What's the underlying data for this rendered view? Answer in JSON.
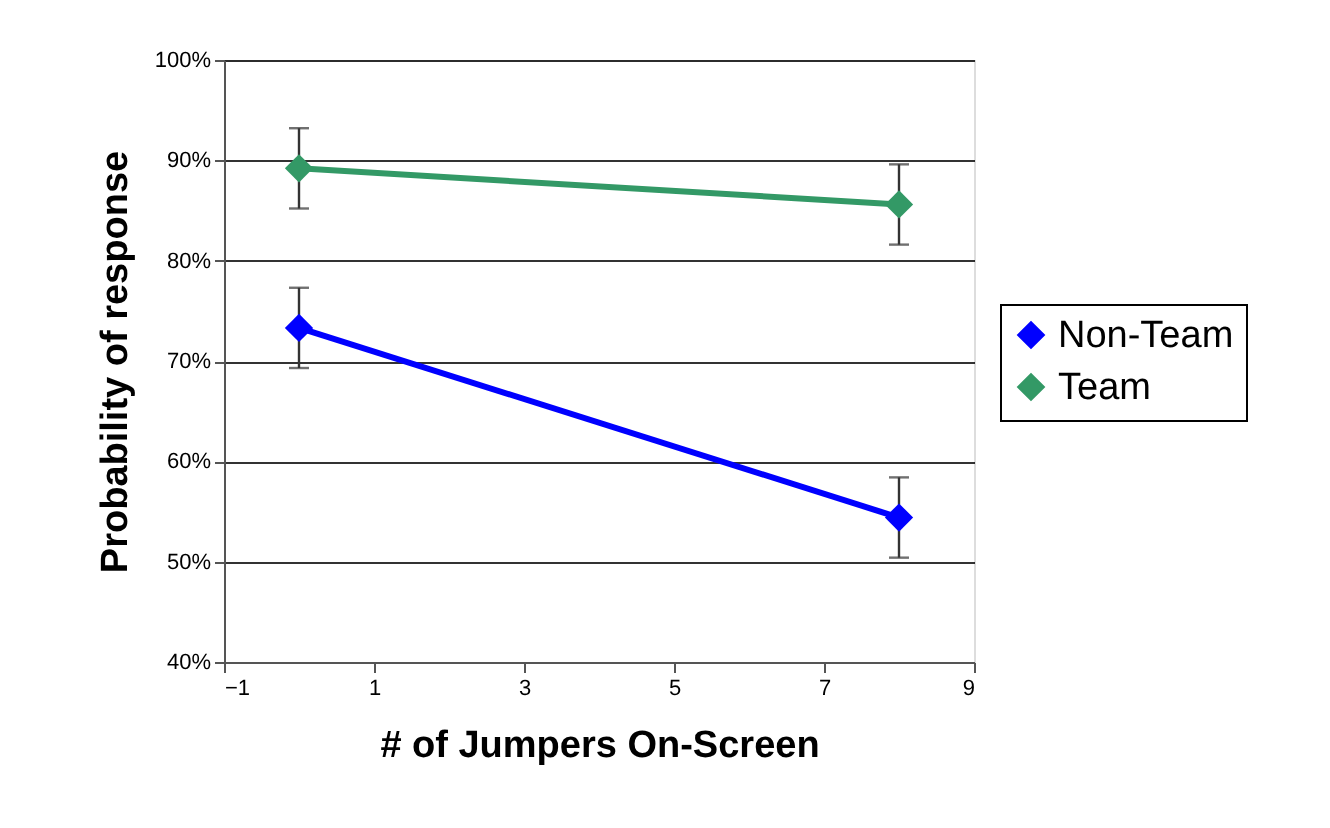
{
  "chart_data": {
    "type": "line",
    "xlabel": "# of Jumpers On-Screen",
    "ylabel": "Probability of response",
    "x": [
      0,
      8
    ],
    "series": [
      {
        "name": "Non-Team",
        "color": "#0000ff",
        "values": [
          73.3,
          54.4
        ],
        "errors": [
          4,
          4
        ]
      },
      {
        "name": "Team",
        "color": "#339966",
        "values": [
          89.2,
          85.6
        ],
        "errors": [
          4,
          4
        ]
      }
    ],
    "xlim": [
      -1,
      9
    ],
    "xticks": [
      -1,
      1,
      3,
      5,
      7,
      9
    ],
    "ylim": [
      40,
      100
    ],
    "yticks": [
      {
        "value": 40,
        "label": "40%"
      },
      {
        "value": 50,
        "label": "50%"
      },
      {
        "value": 60,
        "label": "60%"
      },
      {
        "value": 70,
        "label": "70%"
      },
      {
        "value": 80,
        "label": "80%"
      },
      {
        "value": 90,
        "label": "90%"
      },
      {
        "value": 100,
        "label": "100%"
      }
    ],
    "grid": "y",
    "legend": "right",
    "marker": "diamond",
    "line_style": "solid"
  }
}
